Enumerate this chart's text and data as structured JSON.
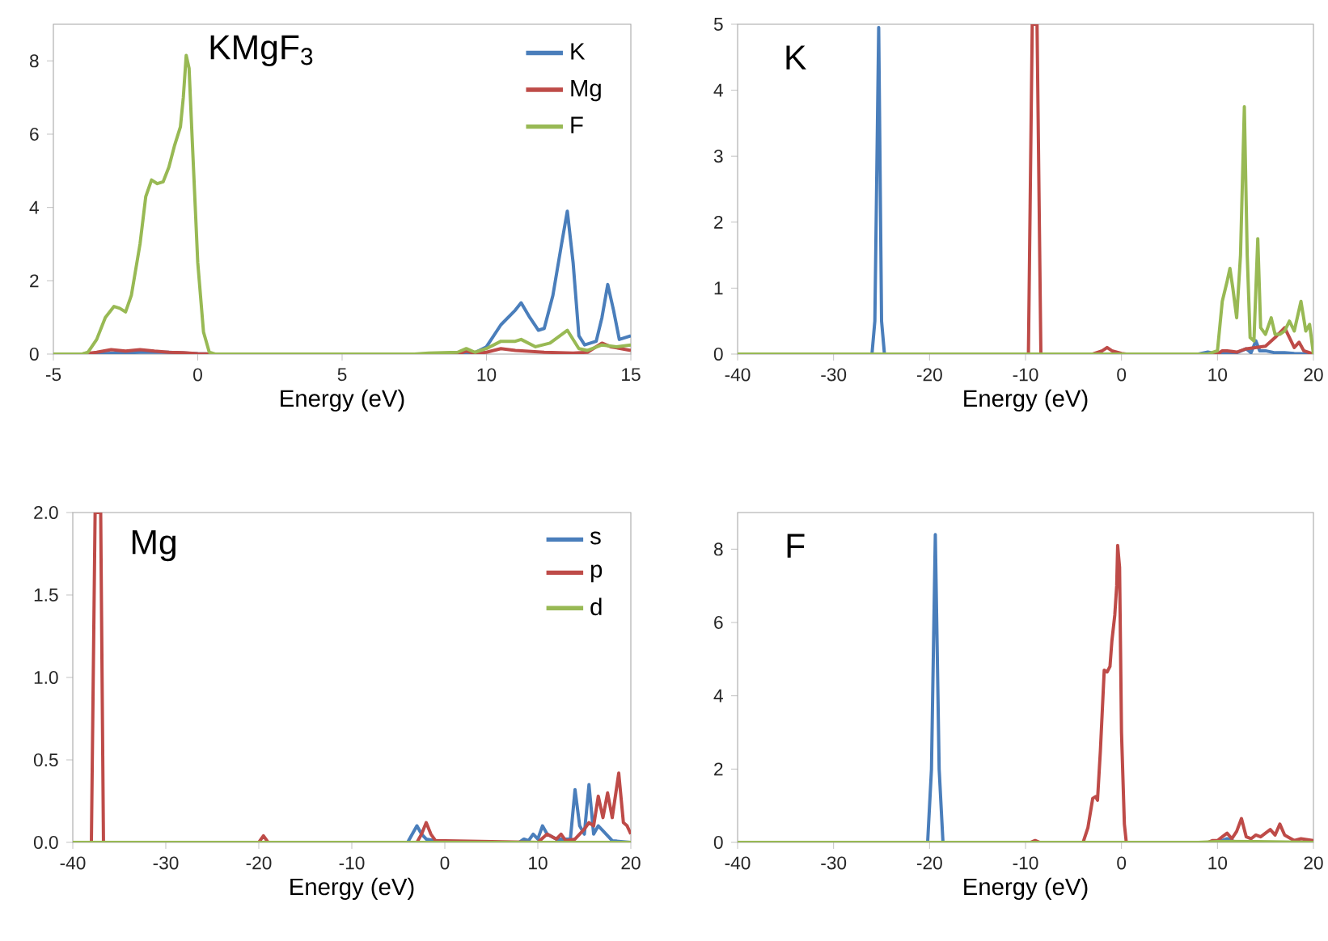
{
  "chart_data": [
    {
      "type": "line",
      "title": "KMgF$_{3}$",
      "xlabel": "Energy (eV)",
      "xlim": [
        -5,
        15
      ],
      "xticks": [
        -5,
        0,
        5,
        10,
        15
      ],
      "ylim": [
        0,
        9
      ],
      "yticks": [
        0,
        2,
        4,
        6,
        8
      ],
      "legend": "top right",
      "series": [
        {
          "name": "K",
          "color": "#4a7ebb",
          "x": [
            -5,
            -4,
            -3,
            -2,
            -1,
            0,
            0.5,
            9.5,
            10,
            10.5,
            11,
            11.2,
            11.5,
            11.8,
            12,
            12.3,
            12.6,
            12.8,
            13,
            13.2,
            13.4,
            13.8,
            14,
            14.2,
            14.4,
            14.6,
            15
          ],
          "values": [
            0,
            0,
            0.02,
            0.05,
            0.05,
            0.01,
            0,
            0,
            0.2,
            0.8,
            1.2,
            1.4,
            1.0,
            0.65,
            0.7,
            1.6,
            3.0,
            3.9,
            2.5,
            0.5,
            0.25,
            0.35,
            1.0,
            1.9,
            1.2,
            0.4,
            0.5
          ]
        },
        {
          "name": "Mg",
          "color": "#be4b48",
          "x": [
            -5,
            -4,
            -3.5,
            -3,
            -2.5,
            -2,
            -1.5,
            -1,
            -0.5,
            0,
            0.5,
            9,
            9.3,
            9.6,
            10,
            10.5,
            11,
            12,
            13,
            13.5,
            14,
            14.3,
            15
          ],
          "values": [
            0,
            0,
            0.05,
            0.12,
            0.08,
            0.12,
            0.08,
            0.05,
            0.04,
            0.01,
            0,
            0,
            0.08,
            0.02,
            0.05,
            0.15,
            0.1,
            0.05,
            0.03,
            0.05,
            0.3,
            0.2,
            0.1
          ]
        },
        {
          "name": "F",
          "color": "#98b954",
          "x": [
            -5,
            -4,
            -3.8,
            -3.5,
            -3.2,
            -2.9,
            -2.7,
            -2.5,
            -2.3,
            -2.0,
            -1.8,
            -1.6,
            -1.4,
            -1.2,
            -1.0,
            -0.8,
            -0.6,
            -0.5,
            -0.4,
            -0.3,
            -0.2,
            0,
            0.2,
            0.4,
            0.6,
            7.5,
            8,
            9,
            9.3,
            9.6,
            10,
            10.5,
            11,
            11.2,
            11.7,
            12.2,
            12.8,
            13.2,
            13.5,
            14,
            14.5,
            15
          ],
          "values": [
            0,
            0,
            0.05,
            0.4,
            1.0,
            1.3,
            1.25,
            1.15,
            1.6,
            3.0,
            4.3,
            4.75,
            4.65,
            4.7,
            5.1,
            5.7,
            6.2,
            7.0,
            8.15,
            7.8,
            6.0,
            2.5,
            0.6,
            0.05,
            0,
            0,
            0.03,
            0.05,
            0.15,
            0.05,
            0.15,
            0.35,
            0.35,
            0.4,
            0.2,
            0.3,
            0.65,
            0.15,
            0.1,
            0.25,
            0.2,
            0.25
          ]
        }
      ]
    },
    {
      "type": "line",
      "title": "K",
      "xlabel": "Energy (eV)",
      "xlim": [
        -40,
        20
      ],
      "xticks": [
        -40,
        -30,
        -20,
        -10,
        0,
        10,
        20
      ],
      "ylim": [
        0,
        5
      ],
      "yticks": [
        0,
        1,
        2,
        3,
        4,
        5
      ],
      "series": [
        {
          "color": "#4a7ebb",
          "x": [
            -40,
            -26,
            -25.7,
            -25.3,
            -25,
            -24.7,
            8,
            9,
            10,
            12,
            13,
            13.5,
            14,
            14.4,
            15,
            16,
            17,
            18,
            20
          ],
          "values": [
            0,
            0,
            0.5,
            4.95,
            0.5,
            0,
            0,
            0.03,
            0,
            0.02,
            0.08,
            0.02,
            0.2,
            0.05,
            0.05,
            0.02,
            0.02,
            0.01,
            0
          ]
        },
        {
          "color": "#be4b48",
          "x": [
            -40,
            -9.7,
            -9.3,
            -8.8,
            -8.4,
            -3,
            -2,
            -1.5,
            -1,
            0,
            0.5,
            10,
            10.5,
            11,
            12,
            13,
            14,
            15,
            16,
            17,
            17.5,
            18,
            18.5,
            19,
            20
          ],
          "values": [
            0,
            0,
            5,
            5,
            0,
            0,
            0.05,
            0.1,
            0.05,
            0.01,
            0,
            0,
            0.05,
            0.05,
            0.03,
            0.08,
            0.1,
            0.12,
            0.25,
            0.4,
            0.25,
            0.1,
            0.18,
            0.05,
            0
          ]
        },
        {
          "color": "#98b954",
          "x": [
            -40,
            9,
            10,
            10.5,
            11,
            11.3,
            11.6,
            12,
            12.4,
            12.8,
            13.1,
            13.4,
            13.8,
            14.2,
            14.5,
            15,
            15.6,
            16,
            16.5,
            17,
            17.5,
            18,
            18.7,
            19.2,
            19.6,
            20
          ],
          "values": [
            0,
            0,
            0.05,
            0.8,
            1.1,
            1.3,
            1.0,
            0.55,
            1.5,
            3.75,
            1.5,
            0.25,
            0.2,
            1.75,
            0.4,
            0.3,
            0.55,
            0.3,
            0.3,
            0.35,
            0.5,
            0.35,
            0.8,
            0.35,
            0.45,
            0
          ]
        }
      ]
    },
    {
      "type": "line",
      "title": "Mg",
      "xlabel": "Energy (eV)",
      "xlim": [
        -40,
        20
      ],
      "xticks": [
        -40,
        -30,
        -20,
        -10,
        0,
        10,
        20
      ],
      "ylim": [
        0,
        2
      ],
      "yticks": [
        {
          "value": 0,
          "label": "0.0"
        },
        {
          "value": 0.5,
          "label": "0.5"
        },
        {
          "value": 1,
          "label": "1.0"
        },
        {
          "value": 1.5,
          "label": "1.5"
        },
        {
          "value": 2,
          "label": "2.0"
        }
      ],
      "legend": "top right",
      "series": [
        {
          "name": "s",
          "color": "#4a7ebb",
          "x": [
            -4,
            -3.5,
            -3,
            -2.5,
            -2,
            0,
            8,
            8.5,
            9,
            9.5,
            10,
            10.5,
            11,
            12,
            13.5,
            14,
            14.5,
            15,
            15.5,
            16,
            16.5,
            17,
            18,
            20
          ],
          "values": [
            0,
            0.05,
            0.1,
            0.05,
            0.02,
            0,
            0,
            0.02,
            0.01,
            0.05,
            0.02,
            0.1,
            0.05,
            0.02,
            0.02,
            0.32,
            0.1,
            0.05,
            0.35,
            0.05,
            0.1,
            0.07,
            0.01,
            0
          ]
        },
        {
          "name": "p",
          "color": "#be4b48",
          "x": [
            -38,
            -37.6,
            -37,
            -36.7,
            -20,
            -19.5,
            -19,
            -3,
            -2.5,
            -2,
            -1.5,
            -1,
            0,
            10,
            11,
            12,
            12.5,
            13,
            14,
            15,
            15.5,
            16,
            16.5,
            17,
            17.5,
            18,
            18.7,
            19.2,
            19.6,
            20
          ],
          "values": [
            0,
            2,
            2,
            0,
            0,
            0.04,
            0,
            0,
            0.05,
            0.12,
            0.05,
            0.01,
            0.01,
            0,
            0.05,
            0.02,
            0.05,
            0.01,
            0.02,
            0.08,
            0.12,
            0.1,
            0.28,
            0.15,
            0.3,
            0.15,
            0.42,
            0.12,
            0.1,
            0.05
          ]
        },
        {
          "name": "d",
          "color": "#98b954",
          "x": [
            -40,
            20
          ],
          "values": [
            0,
            0
          ]
        }
      ]
    },
    {
      "type": "line",
      "title": "F",
      "xlabel": "Energy (eV)",
      "xlim": [
        -40,
        20
      ],
      "xticks": [
        -40,
        -30,
        -20,
        -10,
        0,
        10,
        20
      ],
      "ylim": [
        0,
        9
      ],
      "yticks": [
        0,
        2,
        4,
        6,
        8
      ],
      "series": [
        {
          "color": "#4a7ebb",
          "x": [
            -40,
            -20.2,
            -19.8,
            -19.4,
            -19,
            -18.6,
            10,
            11,
            12,
            20
          ],
          "values": [
            0,
            0,
            2,
            8.4,
            2,
            0,
            0,
            0.1,
            0,
            0
          ]
        },
        {
          "color": "#be4b48",
          "x": [
            -40,
            -9.5,
            -9,
            -8.5,
            -4,
            -3.5,
            -3,
            -2.7,
            -2.5,
            -2.2,
            -1.8,
            -1.5,
            -1.2,
            -1,
            -0.7,
            -0.5,
            -0.4,
            -0.2,
            0,
            0.3,
            0.5,
            9,
            9.5,
            10,
            10.5,
            11,
            11.5,
            12,
            12.5,
            13,
            13.5,
            14,
            14.5,
            15.5,
            16,
            16.5,
            17,
            18,
            18.7,
            20
          ],
          "values": [
            0,
            0,
            0.05,
            0,
            0,
            0.4,
            1.2,
            1.25,
            1.15,
            2.5,
            4.7,
            4.65,
            4.8,
            5.5,
            6.2,
            7.0,
            8.1,
            7.5,
            3.0,
            0.5,
            0,
            0,
            0.05,
            0.05,
            0.15,
            0.25,
            0.1,
            0.3,
            0.65,
            0.15,
            0.1,
            0.2,
            0.15,
            0.35,
            0.2,
            0.5,
            0.2,
            0.05,
            0.1,
            0.05
          ]
        },
        {
          "color": "#98b954",
          "x": [
            -40,
            8,
            10,
            12,
            14,
            20
          ],
          "values": [
            0,
            0,
            0.02,
            0.03,
            0.02,
            0
          ]
        }
      ]
    }
  ]
}
